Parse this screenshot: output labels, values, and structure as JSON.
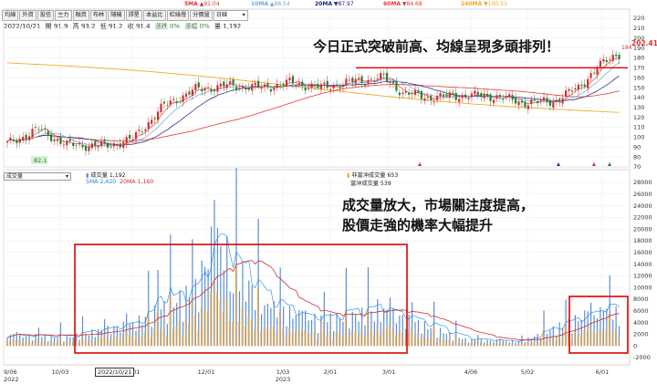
{
  "legend_top": [
    {
      "label": "5MA",
      "value": "▲91.04",
      "color": "#d33"
    },
    {
      "label": "10MA",
      "value": "▲88.54",
      "color": "#6aa9d8"
    },
    {
      "label": "20MA",
      "value": "▼87.97",
      "color": "#1a237e"
    },
    {
      "label": "60MA",
      "value": "▼84.68",
      "color": "#e53935"
    },
    {
      "label": "240MA",
      "value": "▼100.33",
      "color": "#f5a623"
    }
  ],
  "toolbar": {
    "tabs": [
      "均線",
      "外資",
      "投信",
      "主力",
      "融資",
      "布林",
      "隨機",
      "擇星",
      "本益比",
      "紅綠燈",
      "分價量"
    ],
    "period": "日線"
  },
  "quote": {
    "date": "2022/10/21",
    "open": "開 91.9",
    "high": "高 93.2",
    "low": "低 91.2",
    "close": "收 91.4",
    "change": "漲跌 0%",
    "change_pct": "漲幅 0%",
    "volume": "量 1,192"
  },
  "price_axis": {
    "ticks": [
      "220",
      "210",
      "200",
      "190",
      "180",
      "170",
      "160",
      "150",
      "140",
      "130",
      "120",
      "110",
      "100",
      "90",
      "80",
      "70"
    ],
    "last_price": "202.41",
    "marker": "184",
    "low_label": "82.1"
  },
  "volume_axis": {
    "ticks": [
      "28000",
      "26000",
      "24000",
      "22000",
      "20000",
      "18000",
      "16000",
      "14000",
      "12000",
      "10000",
      "8000",
      "6000",
      "4000",
      "2000",
      "0",
      "-2000"
    ]
  },
  "volume_panel": {
    "selector": "成交量",
    "legend": [
      "成交量 1,192",
      "5MA 2,420",
      "20MA 1,160"
    ],
    "legend2": [
      "非當沖成交量 653",
      "當沖成交量 539"
    ]
  },
  "x_axis": {
    "labels": [
      {
        "text": "9/06",
        "sub": "2022"
      },
      {
        "text": "10/03",
        "sub": ""
      },
      {
        "text": "11/01",
        "sub": ""
      },
      {
        "text": "12/01",
        "sub": ""
      },
      {
        "text": "1/03",
        "sub": "2023"
      },
      {
        "text": "2/01",
        "sub": ""
      },
      {
        "text": "3/01",
        "sub": ""
      },
      {
        "text": "4/06",
        "sub": ""
      },
      {
        "text": "5/02",
        "sub": ""
      },
      {
        "text": "6/01",
        "sub": ""
      }
    ],
    "cursor_date": "2022/10/21"
  },
  "annotations": {
    "price_note": "今日正式突破前高、均線呈現多頭排列！",
    "volume_note_1": "成交量放大，市場關注度提高，",
    "volume_note_2": "股價走強的機率大幅提升"
  },
  "colors": {
    "up": "#d32f2f",
    "down": "#2e7d32",
    "vol_blue": "#5b8fd0",
    "vol_orange": "#f2a43a",
    "highlight": "#e00000"
  },
  "chart_data": {
    "type": "candlestick",
    "title": "",
    "price_key_points": {
      "x": [
        "9/06",
        "9/20",
        "10/03",
        "10/21",
        "11/01",
        "11/15",
        "12/01",
        "12/15",
        "1/03",
        "1/16",
        "2/01",
        "2/15",
        "3/01",
        "3/10",
        "3/20",
        "4/06",
        "4/20",
        "5/02",
        "5/15",
        "5/25",
        "6/01",
        "6/08"
      ],
      "close": [
        93,
        108,
        92,
        91.4,
        98,
        132,
        148,
        152,
        150,
        155,
        150,
        156,
        160,
        145,
        140,
        142,
        141,
        135,
        136,
        150,
        170,
        184
      ]
    },
    "horizontal_line_level": 170,
    "volume_key_points": {
      "x": [
        "9/06",
        "10/03",
        "11/01",
        "12/01",
        "12/08",
        "1/03",
        "2/01",
        "3/01",
        "4/06",
        "5/02",
        "6/01"
      ],
      "volume": [
        2500,
        2000,
        5000,
        13000,
        25000,
        9000,
        6000,
        8000,
        1500,
        1000,
        7500
      ]
    },
    "price_ylim": [
      70,
      220
    ],
    "volume_ylim": [
      -2000,
      28000
    ]
  }
}
